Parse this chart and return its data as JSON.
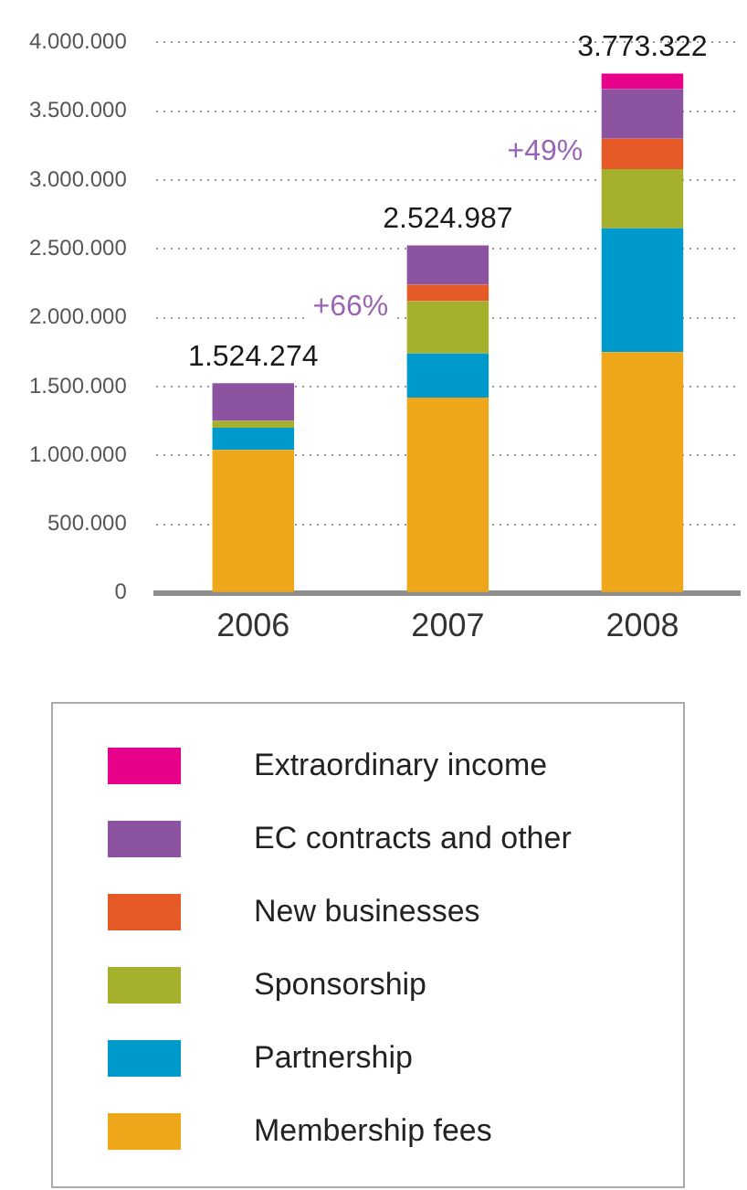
{
  "chart_data": {
    "type": "bar",
    "stacked": true,
    "categories": [
      "2006",
      "2007",
      "2008"
    ],
    "series": [
      {
        "name": "Membership fees",
        "color": "#eea71a",
        "values": [
          1040000,
          1420000,
          1750000
        ]
      },
      {
        "name": "Partnership",
        "color": "#0099cc",
        "values": [
          160000,
          320000,
          900000
        ]
      },
      {
        "name": "Sponsorship",
        "color": "#a5b12d",
        "values": [
          50000,
          380000,
          430000
        ]
      },
      {
        "name": "New businesses",
        "color": "#e55a27",
        "values": [
          null,
          120000,
          220000
        ]
      },
      {
        "name": "EC contracts and other",
        "color": "#8c54a0",
        "values": [
          274274,
          284987,
          360000
        ]
      },
      {
        "name": "Extraordinary income",
        "color": "#e6008a",
        "values": [
          null,
          null,
          113322
        ]
      }
    ],
    "totals": [
      "1.524.274",
      "2.524.987",
      "3.773.322"
    ],
    "annotations": [
      "+66%",
      "+49%"
    ],
    "ylim": [
      0,
      4000000
    ],
    "yticks": [
      {
        "value": 0,
        "label": "0"
      },
      {
        "value": 500000,
        "label": "500.000"
      },
      {
        "value": 1000000,
        "label": "1.000.000"
      },
      {
        "value": 1500000,
        "label": "1.500.000"
      },
      {
        "value": 2000000,
        "label": "2.000.000"
      },
      {
        "value": 2500000,
        "label": "2.500.000"
      },
      {
        "value": 3000000,
        "label": "3.000.000"
      },
      {
        "value": 3500000,
        "label": "3.500.000"
      },
      {
        "value": 4000000,
        "label": "4.000.000"
      }
    ],
    "grid": "y",
    "legend": "bottom"
  }
}
